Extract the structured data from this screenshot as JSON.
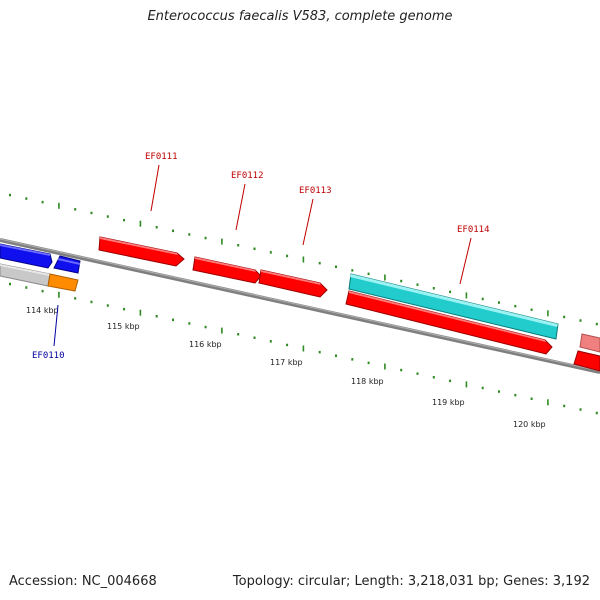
{
  "title": "Enterococcus faecalis V583, complete genome",
  "footer": {
    "accession": "Accession: NC_004668",
    "summary": "Topology: circular; Length: 3,218,031 bp; Genes: 3,192"
  },
  "colors": {
    "backbone": "#7f7f7f",
    "tick": "#2e8b22",
    "gene_red": "#ff0000",
    "gene_blue": "#1010ee",
    "gene_cyan": "#22cccc",
    "gene_orange": "#ff8c00",
    "gene_grey": "#c8c8c8",
    "gene_pink": "#f08080",
    "label_red": "#c00000",
    "label_blue": "#0000a0"
  },
  "axis_ticks": [
    "114 kbp",
    "115 kbp",
    "116 kbp",
    "117 kbp",
    "118 kbp",
    "119 kbp",
    "120 kbp"
  ],
  "gene_labels": [
    {
      "name": "EF0110",
      "color": "blue"
    },
    {
      "name": "EF0111",
      "color": "red"
    },
    {
      "name": "EF0112",
      "color": "red"
    },
    {
      "name": "EF0113",
      "color": "red"
    },
    {
      "name": "EF0114",
      "color": "red"
    }
  ]
}
